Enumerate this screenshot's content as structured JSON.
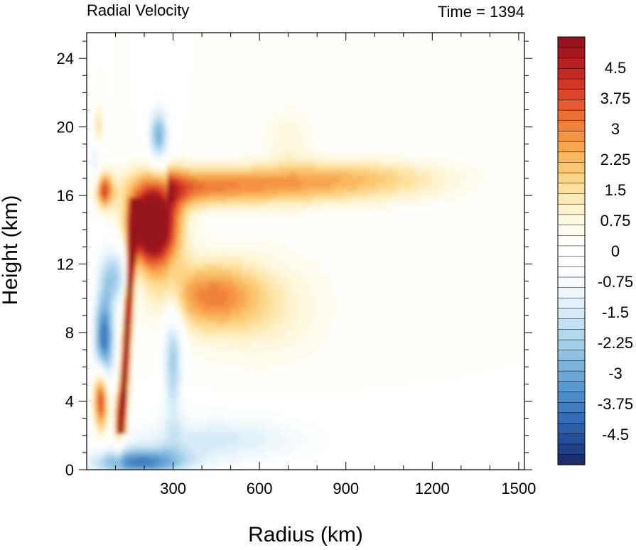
{
  "chart_data": {
    "type": "heatmap",
    "title": "Radial Velocity",
    "subtitle": "Time = 1394",
    "xlabel": "Radius (km)",
    "ylabel": "Height (km)",
    "xlim": [
      0,
      1520
    ],
    "ylim": [
      0,
      25.5
    ],
    "x_ticks": [
      300,
      600,
      900,
      1200,
      1500
    ],
    "y_ticks": [
      0,
      4,
      8,
      12,
      16,
      20,
      24
    ],
    "x_tick_labels": [
      "300",
      "600",
      "900",
      "1200",
      "1500"
    ],
    "y_tick_labels": [
      "0",
      "4",
      "8",
      "12",
      "16",
      "20",
      "24"
    ],
    "colorbar": {
      "levels": [
        -5.25,
        -5.0,
        -4.75,
        -4.5,
        -4.25,
        -4.0,
        -3.75,
        -3.5,
        -3.25,
        -3.0,
        -2.75,
        -2.5,
        -2.25,
        -2.0,
        -1.75,
        -1.5,
        -1.25,
        -1.0,
        -0.75,
        -0.5,
        -0.25,
        0,
        0.25,
        0.5,
        0.75,
        1.0,
        1.25,
        1.5,
        1.75,
        2.0,
        2.25,
        2.5,
        2.75,
        3.0,
        3.25,
        3.5,
        3.75,
        4.0,
        4.25,
        4.5,
        4.75,
        5.0,
        5.25
      ],
      "tick_values": [
        -4.5,
        -3.75,
        -3,
        -2.25,
        -1.5,
        -0.75,
        0,
        0.75,
        1.5,
        2.25,
        3,
        3.75,
        4.5
      ],
      "tick_labels": [
        "-4.5",
        "-3.75",
        "-3",
        "-2.25",
        "-1.5",
        "-0.75",
        "0",
        "0.75",
        "1.5",
        "2.25",
        "3",
        "3.75",
        "4.5"
      ],
      "colors": [
        "#1a2f6b",
        "#1f3f86",
        "#234e9a",
        "#2b5ea9",
        "#346db6",
        "#3f7cc0",
        "#4b8bc8",
        "#5a99cf",
        "#6aa7d6",
        "#7cb4dc",
        "#8ec1e2",
        "#a0cde8",
        "#b2d8ee",
        "#c4e2f3",
        "#d5ebf7",
        "#e3f2fa",
        "#eef7fc",
        "#f6fbfd",
        "#fbfdfe",
        "#ffffff",
        "#ffffff",
        "#fffefa",
        "#fffcef",
        "#fff9e2",
        "#fff3cf",
        "#feeab6",
        "#fde09d",
        "#fcd486",
        "#fbc771",
        "#f9b75e",
        "#f7a64f",
        "#f49443",
        "#f0813a",
        "#eb6e33",
        "#e55a2e",
        "#dc472a",
        "#d13627",
        "#c42924",
        "#b51f22",
        "#a51820",
        "#96141e"
      ]
    },
    "features": [
      {
        "kind": "core",
        "r": [
          150,
          320
        ],
        "z": [
          12,
          16.5
        ],
        "value": 6
      },
      {
        "kind": "outflow_jet",
        "r": [
          320,
          1280
        ],
        "z": [
          15,
          18
        ],
        "value": 2.4
      },
      {
        "kind": "midlevel_outflow",
        "r": [
          330,
          650
        ],
        "z": [
          8,
          12.5
        ],
        "value": 1.6
      },
      {
        "kind": "inflow_boundary_layer",
        "r": [
          60,
          1100
        ],
        "z": [
          0,
          3.5
        ],
        "value": -2.2
      },
      {
        "kind": "eyewall_tilt",
        "r": [
          130,
          180
        ],
        "z": [
          2,
          16
        ],
        "value": 5
      }
    ]
  }
}
